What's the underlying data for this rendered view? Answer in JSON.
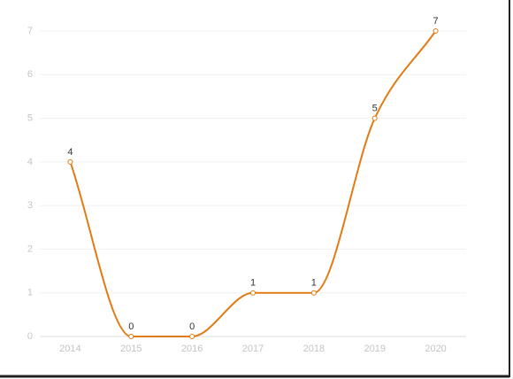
{
  "chart_data": {
    "type": "line",
    "categories": [
      "2014",
      "2015",
      "2016",
      "2017",
      "2018",
      "2019",
      "2020"
    ],
    "values": [
      4,
      0,
      0,
      1,
      1,
      5,
      7
    ],
    "color": "#e07b14",
    "ylim": [
      0,
      7
    ],
    "yticks": [
      0,
      1,
      2,
      3,
      4,
      5,
      6,
      7
    ],
    "grid": true
  }
}
